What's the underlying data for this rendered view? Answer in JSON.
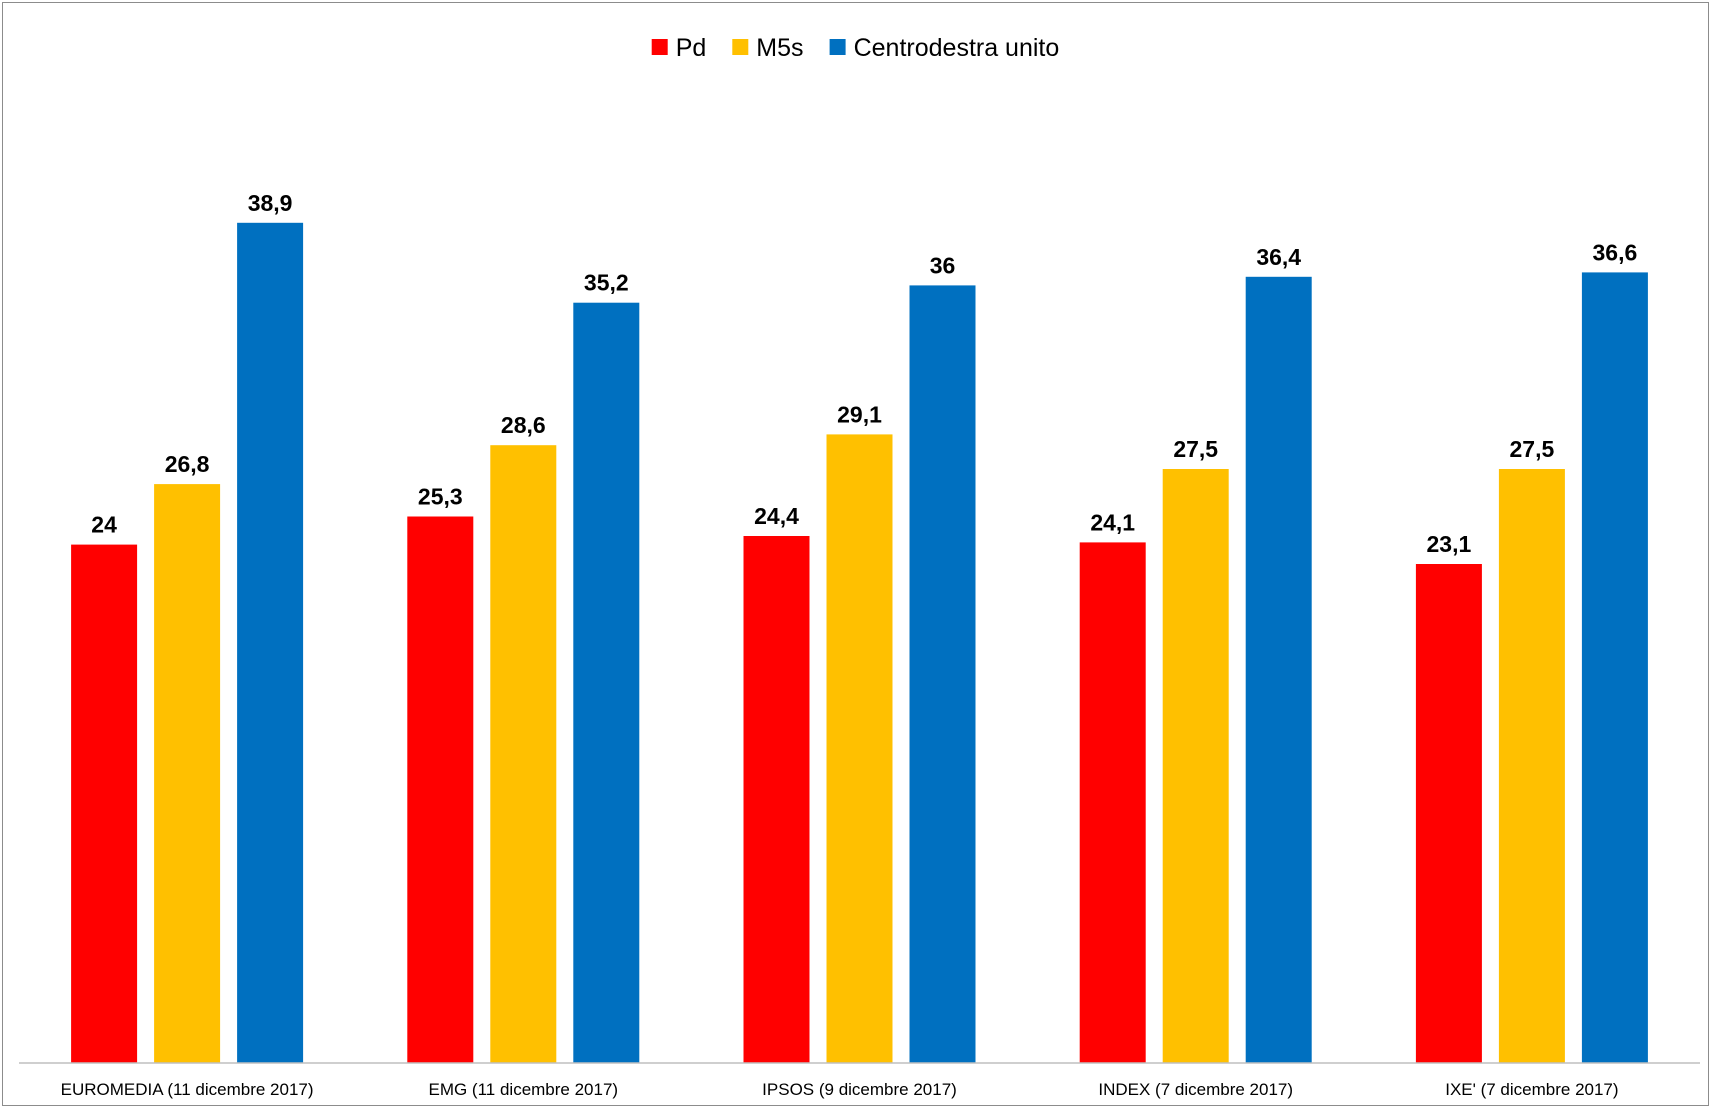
{
  "chart_data": {
    "type": "bar",
    "title": "",
    "xlabel": "",
    "ylabel": "",
    "categories": [
      "EUROMEDIA (11 dicembre 2017)",
      "EMG (11 dicembre 2017)",
      "IPSOS (9 dicembre 2017)",
      "INDEX (7 dicembre 2017)",
      "IXE' (7 dicembre 2017)"
    ],
    "series": [
      {
        "name": "Pd",
        "color": "#ff0000",
        "values": [
          24,
          25.3,
          24.4,
          24.1,
          23.1
        ]
      },
      {
        "name": "M5s",
        "color": "#ffc000",
        "values": [
          26.8,
          28.6,
          29.1,
          27.5,
          27.5
        ]
      },
      {
        "name": "Centrodestra unito",
        "color": "#0070c0",
        "values": [
          38.9,
          35.2,
          36,
          36.4,
          36.6
        ]
      }
    ],
    "ylim": [
      0,
      45
    ],
    "grid": false,
    "legend_position": "top-center",
    "decimal_separator": ","
  }
}
